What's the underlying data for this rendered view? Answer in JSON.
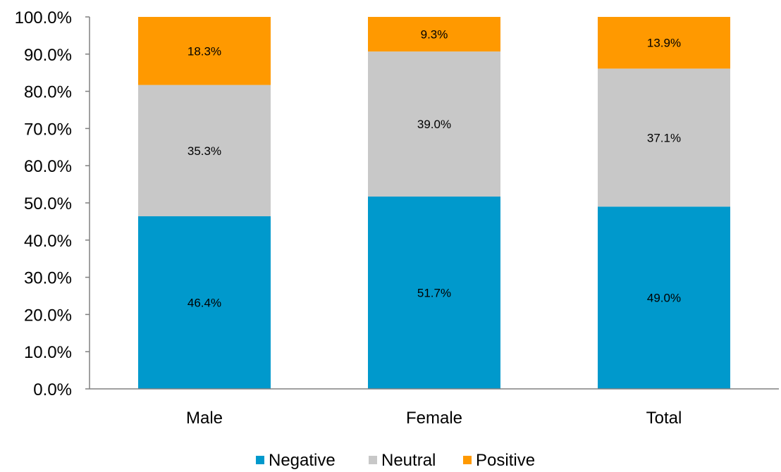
{
  "chart_data": {
    "type": "bar",
    "stacked": true,
    "categories": [
      "Male",
      "Female",
      "Total"
    ],
    "series": [
      {
        "name": "Negative",
        "values": [
          46.4,
          51.7,
          49.0
        ],
        "color": "#0099CC",
        "labels": [
          "46.4%",
          "51.7%",
          "49.0%"
        ]
      },
      {
        "name": "Neutral",
        "values": [
          35.3,
          39.0,
          37.1
        ],
        "color": "#C8C8C8",
        "labels": [
          "35.3%",
          "39.0%",
          "37.1%"
        ]
      },
      {
        "name": "Positive",
        "values": [
          18.3,
          9.3,
          13.9
        ],
        "color": "#FF9900",
        "labels": [
          "18.3%",
          "9.3%",
          "13.9%"
        ]
      }
    ],
    "ylim": [
      0,
      100
    ],
    "yticks": [
      0,
      10,
      20,
      30,
      40,
      50,
      60,
      70,
      80,
      90,
      100
    ],
    "ytick_labels": [
      "0.0%",
      "10.0%",
      "20.0%",
      "30.0%",
      "40.0%",
      "50.0%",
      "60.0%",
      "70.0%",
      "80.0%",
      "90.0%",
      "100.0%"
    ],
    "grid": false,
    "legend_position": "bottom",
    "title": "",
    "xlabel": "",
    "ylabel": ""
  }
}
